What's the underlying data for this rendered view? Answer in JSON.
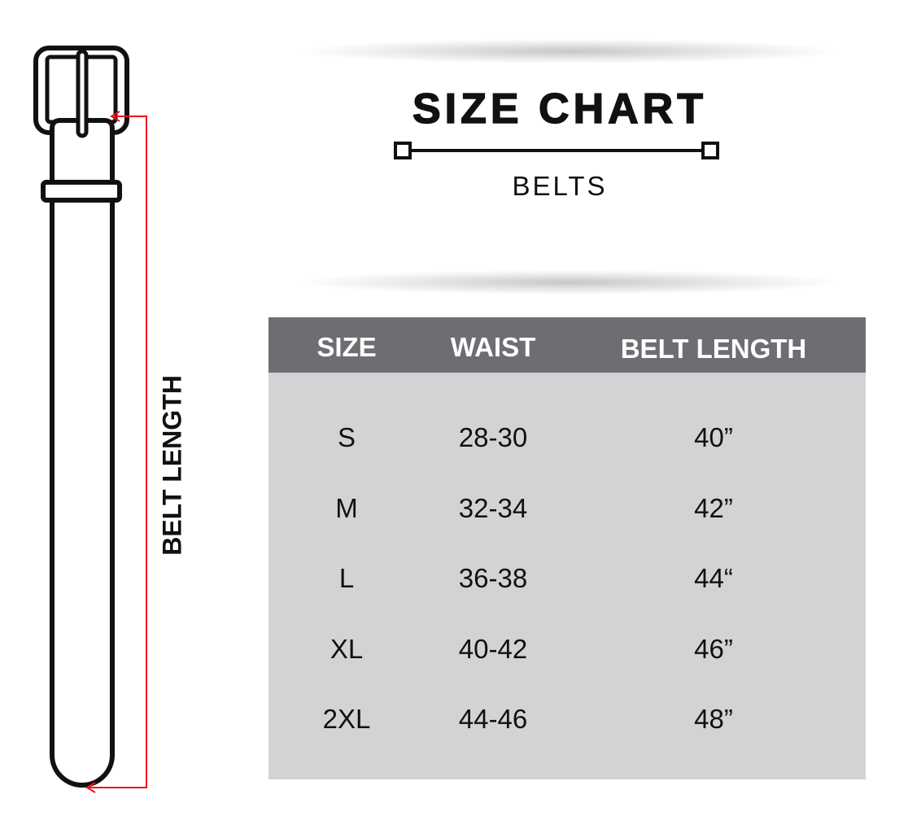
{
  "title": "SIZE CHART",
  "subtitle": "BELTS",
  "diagram_label": "BELT LENGTH",
  "colors": {
    "header_bg": "#6d6e71",
    "body_bg": "#d1d3d4",
    "arrow": "#e8141b"
  },
  "table": {
    "headers": [
      "SIZE",
      "WAIST",
      "BELT LENGTH"
    ],
    "rows": [
      [
        "S",
        "28-30",
        "40”"
      ],
      [
        "M",
        "32-34",
        "42”"
      ],
      [
        "L",
        "36-38",
        "44“"
      ],
      [
        "XL",
        "40-42",
        "46”"
      ],
      [
        "2XL",
        "44-46",
        "48”"
      ]
    ]
  }
}
